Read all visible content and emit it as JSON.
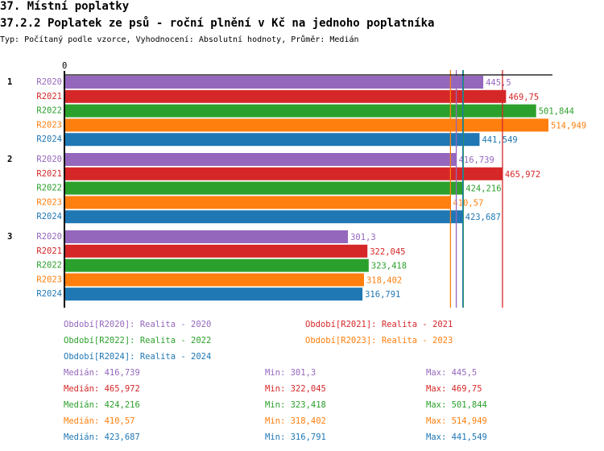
{
  "header": {
    "title": "37. Místní poplatky",
    "subtitle": "37.2.2 Poplatek ze psů - roční plnění v Kč na jednoho poplatníka",
    "info": "Typ: Počítaný podle vzorce, Vyhodnocení: Absolutní hodnoty, Průměr: Medián"
  },
  "chart_data": {
    "type": "bar",
    "orientation": "horizontal",
    "xlim": [
      0,
      514.949
    ],
    "x_tick_labels": [
      "0"
    ],
    "categories": [
      "1",
      "2",
      "3"
    ],
    "series": [
      {
        "name": "R2020",
        "color": "#9467bd",
        "values": [
          445.5,
          416.739,
          301.3
        ],
        "labels": [
          "445,5",
          "416,739",
          "301,3"
        ]
      },
      {
        "name": "R2021",
        "color": "#d62728",
        "values": [
          469.75,
          465.972,
          322.045
        ],
        "labels": [
          "469,75",
          "465,972",
          "322,045"
        ]
      },
      {
        "name": "R2022",
        "color": "#2ca02c",
        "values": [
          501.844,
          424.216,
          323.418
        ],
        "labels": [
          "501,844",
          "424,216",
          "323,418"
        ]
      },
      {
        "name": "R2023",
        "color": "#ff7f0e",
        "values": [
          514.949,
          410.57,
          318.402
        ],
        "labels": [
          "514,949",
          "410,57",
          "318,402"
        ]
      },
      {
        "name": "R2024",
        "color": "#1f77b4",
        "values": [
          441.549,
          423.687,
          316.791
        ],
        "labels": [
          "441,549",
          "423,687",
          "316,791"
        ]
      }
    ],
    "median_lines": [
      416.739,
      465.972,
      424.216,
      410.57,
      423.687
    ]
  },
  "legend": [
    "Období[R2020]: Realita - 2020",
    "Období[R2021]: Realita - 2021",
    "Období[R2022]: Realita - 2022",
    "Období[R2023]: Realita - 2023",
    "Období[R2024]: Realita - 2024"
  ],
  "stats": [
    {
      "median": "Medián: 416,739",
      "min": "Min: 301,3",
      "max": "Max: 445,5"
    },
    {
      "median": "Medián: 465,972",
      "min": "Min: 322,045",
      "max": "Max: 469,75"
    },
    {
      "median": "Medián: 424,216",
      "min": "Min: 323,418",
      "max": "Max: 501,844"
    },
    {
      "median": "Medián: 410,57",
      "min": "Min: 318,402",
      "max": "Max: 514,949"
    },
    {
      "median": "Medián: 423,687",
      "min": "Min: 316,791",
      "max": "Max: 441,549"
    }
  ]
}
